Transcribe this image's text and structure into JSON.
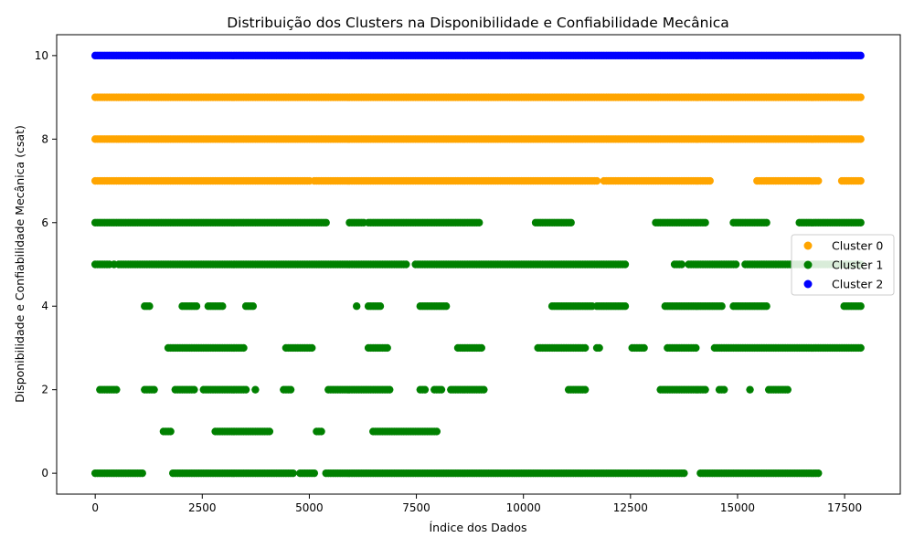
{
  "chart_data": {
    "type": "scatter",
    "title": "Distribuição dos Clusters na Disponibilidade e Confiabilidade Mecânica",
    "xlabel": "Índice dos Dados",
    "ylabel": "Disponibilidade e Confiabilidade Mecânica (csat)",
    "xlim": [
      -900,
      18800
    ],
    "ylim": [
      -0.5,
      10.5
    ],
    "x_ticks": [
      0,
      2500,
      5000,
      7500,
      10000,
      12500,
      15000,
      17500
    ],
    "y_ticks": [
      0,
      2,
      4,
      6,
      8,
      10
    ],
    "grid": false,
    "legend_position": "center-right",
    "x_range_data": [
      0,
      17900
    ],
    "series": [
      {
        "name": "Cluster 0",
        "color": "#ffa500",
        "levels": [
          {
            "y": 9,
            "density": 1.0
          },
          {
            "y": 8,
            "density": 1.0
          },
          {
            "y": 7,
            "density": 0.9
          }
        ]
      },
      {
        "name": "Cluster 1",
        "color": "#008000",
        "levels": [
          {
            "y": 6,
            "density": 0.8
          },
          {
            "y": 5,
            "density": 0.85
          },
          {
            "y": 4,
            "density": 0.45
          },
          {
            "y": 3,
            "density": 0.35
          },
          {
            "y": 2,
            "density": 0.35
          },
          {
            "y": 1,
            "density": 0.15
          },
          {
            "y": 0,
            "density": 0.8
          }
        ]
      },
      {
        "name": "Cluster 2",
        "color": "#0000ff",
        "levels": [
          {
            "y": 10,
            "density": 1.0
          }
        ]
      }
    ]
  }
}
